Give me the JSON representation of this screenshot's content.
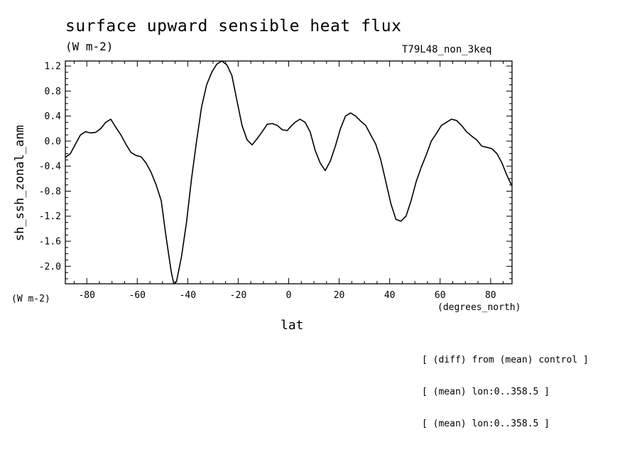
{
  "chart_data": {
    "type": "line",
    "title": "surface upward sensible heat flux",
    "title_units": "(W m-2)",
    "dataset_label": "T79L48_non_3keq",
    "ylabel": "sh_ssh_zonal_anm",
    "yunits": "(W m-2)",
    "xlabel": "lat",
    "xunits": "(degrees_north)",
    "xlim": [
      -88.5,
      88.5
    ],
    "ylim": [
      -2.28,
      1.28
    ],
    "xticks": [
      -80,
      -60,
      -40,
      -20,
      0,
      20,
      40,
      60,
      80
    ],
    "xtick_labels": [
      "-80",
      "-60",
      "-40",
      "-20",
      "0",
      "20",
      "40",
      "60",
      "80"
    ],
    "yticks": [
      -2.0,
      -1.6,
      -1.2,
      -0.8,
      -0.4,
      0.0,
      0.4,
      0.8,
      1.2
    ],
    "ytick_labels": [
      "-2.0",
      "-1.6",
      "-1.2",
      "-0.8",
      "-0.4",
      "0.0",
      "0.4",
      "0.8",
      "1.2"
    ],
    "grid": false,
    "series": [
      {
        "color": "#000000",
        "x": [
          -88.5,
          -86.5,
          -84.5,
          -82.5,
          -80.5,
          -78.5,
          -76.5,
          -74.5,
          -72.5,
          -70.5,
          -68.5,
          -66.5,
          -64.5,
          -62.5,
          -60.5,
          -58.5,
          -56.5,
          -54.5,
          -52.5,
          -50.5,
          -48.5,
          -46.5,
          -45.5,
          -44.5,
          -42.5,
          -40.5,
          -38.5,
          -36.5,
          -34.5,
          -32.5,
          -30.5,
          -28.5,
          -26.5,
          -24.5,
          -22.5,
          -20.5,
          -18.5,
          -16.5,
          -14.5,
          -12.5,
          -10.5,
          -8.5,
          -6.5,
          -4.5,
          -2.5,
          -0.5,
          0.5,
          2.5,
          4.5,
          6.5,
          8.5,
          10.5,
          12.5,
          14.5,
          16.5,
          18.5,
          20.5,
          22.5,
          24.5,
          26.5,
          28.5,
          30.5,
          32.5,
          34.5,
          36.5,
          38.5,
          40.5,
          42.5,
          44.5,
          46.5,
          48.5,
          50.5,
          52.5,
          54.5,
          56.5,
          58.5,
          60.5,
          62.5,
          64.5,
          66.5,
          68.5,
          70.5,
          72.5,
          74.5,
          76.5,
          78.5,
          80.5,
          82.5,
          84.5,
          86.5,
          88.5
        ],
        "y": [
          -0.26,
          -0.2,
          -0.05,
          0.1,
          0.15,
          0.13,
          0.14,
          0.2,
          0.3,
          0.35,
          0.22,
          0.1,
          -0.05,
          -0.18,
          -0.23,
          -0.25,
          -0.35,
          -0.5,
          -0.7,
          -0.95,
          -1.55,
          -2.1,
          -2.28,
          -2.25,
          -1.85,
          -1.3,
          -0.6,
          0.0,
          0.55,
          0.9,
          1.1,
          1.23,
          1.28,
          1.22,
          1.05,
          0.65,
          0.25,
          0.02,
          -0.06,
          0.04,
          0.15,
          0.27,
          0.28,
          0.25,
          0.18,
          0.17,
          0.22,
          0.3,
          0.35,
          0.3,
          0.15,
          -0.15,
          -0.35,
          -0.47,
          -0.32,
          -0.08,
          0.2,
          0.4,
          0.45,
          0.4,
          0.32,
          0.25,
          0.1,
          -0.05,
          -0.3,
          -0.65,
          -1.0,
          -1.25,
          -1.28,
          -1.2,
          -0.95,
          -0.65,
          -0.42,
          -0.22,
          0.0,
          0.12,
          0.25,
          0.3,
          0.35,
          0.33,
          0.25,
          0.15,
          0.08,
          0.02,
          -0.08,
          -0.1,
          -0.12,
          -0.2,
          -0.35,
          -0.55,
          -0.72
        ]
      }
    ]
  },
  "notes": [
    "[ (diff) from (mean) control ]",
    "[ (mean) lon:0..358.5 ]",
    "[ (mean) lon:0..358.5 ]"
  ]
}
